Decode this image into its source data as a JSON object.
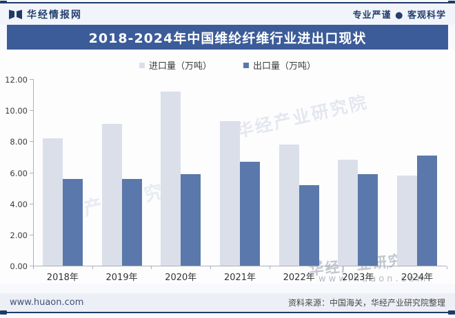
{
  "header": {
    "brand": "华经情报网",
    "slogan": "专业严谨 ● 客观科学"
  },
  "title": "2018-2024年中国维纶纤维行业进出口现状",
  "chart_data": {
    "type": "bar",
    "title": "2018-2024年中国维纶纤维行业进出口现状",
    "categories": [
      "2018年",
      "2019年",
      "2020年",
      "2021年",
      "2022年",
      "2023年",
      "2024年"
    ],
    "series": [
      {
        "name": "进口量（万吨）",
        "color": "#dbdfe9",
        "values": [
          8.2,
          9.1,
          11.2,
          9.3,
          7.8,
          6.8,
          5.8
        ]
      },
      {
        "name": "出口量（万吨）",
        "color": "#5a78ab",
        "values": [
          5.6,
          5.6,
          5.9,
          6.7,
          5.2,
          5.9,
          7.1
        ]
      }
    ],
    "xlabel": "",
    "ylabel": "",
    "ylim": [
      0,
      12
    ],
    "ytick_step": 2,
    "ytick_labels": [
      "0.00",
      "2.00",
      "4.00",
      "6.00",
      "8.00",
      "10.00",
      "12.00"
    ],
    "grid": false,
    "legend_position": "top-center"
  },
  "watermarks": {
    "wm_left": "华经产业研究院",
    "wm_top": "华经产业研究院",
    "wm_bottom": "华经产业研究院",
    "wm_url": "www.huaon.com"
  },
  "footer": {
    "site": "www.huaon.com",
    "source": "资料来源：中国海关，华经产业研究院整理"
  },
  "colors": {
    "accent_navy": "#1f3a67",
    "title_bar": "#3c5c99",
    "import_bar": "#dbdfe9",
    "export_bar": "#5a78ab",
    "axis": "#aab0b8"
  }
}
